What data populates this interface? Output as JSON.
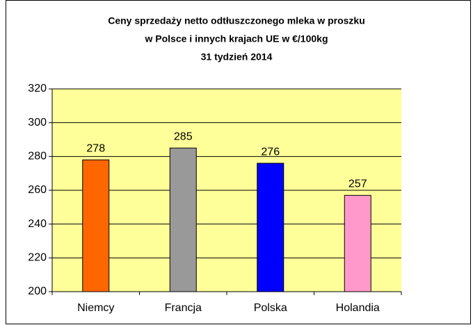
{
  "chart_data": {
    "type": "bar",
    "title": [
      "Ceny sprzedaży netto odtłuszczonego mleka w proszku",
      "w Polsce i innych krajach UE w €/100kg",
      "31 tydzień 2014"
    ],
    "categories": [
      "Niemcy",
      "Francja",
      "Polska",
      "Holandia"
    ],
    "values": [
      278,
      285,
      276,
      257
    ],
    "colors": [
      "#ff6600",
      "#999999",
      "#0000ff",
      "#ff99cc"
    ],
    "ylim": [
      200,
      320
    ],
    "yticks": [
      200,
      220,
      240,
      260,
      280,
      300,
      320
    ],
    "grid": true
  }
}
